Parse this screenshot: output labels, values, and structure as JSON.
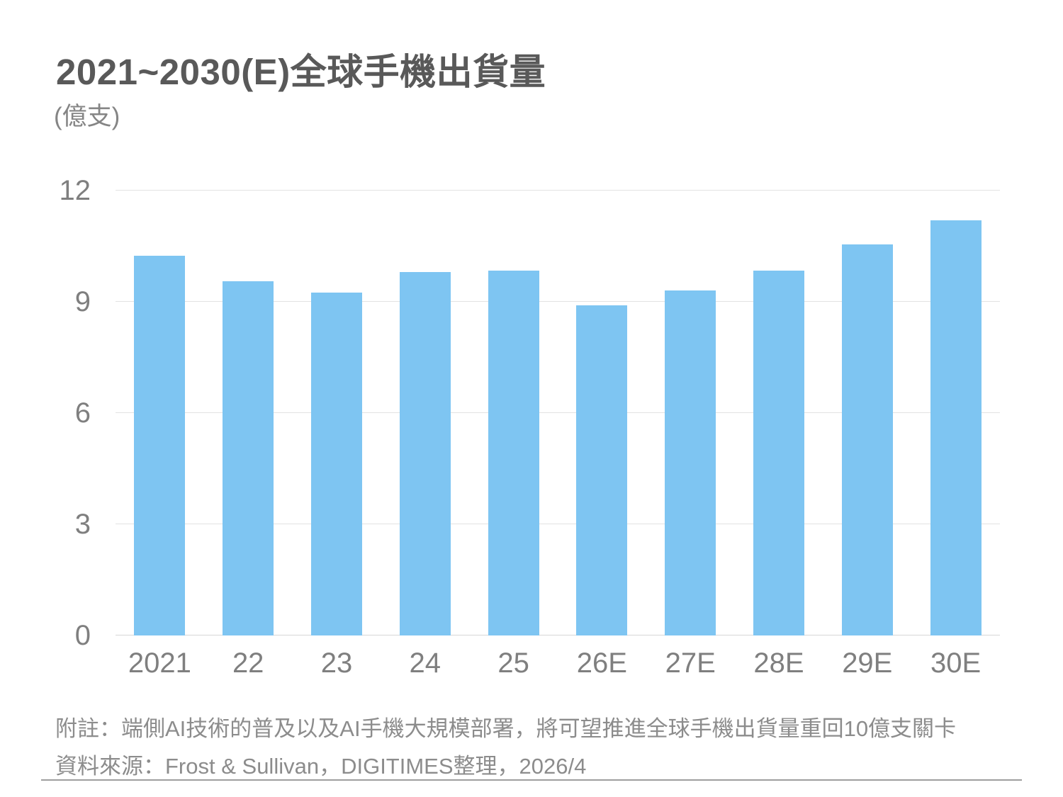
{
  "title": "2021~2030(E)全球手機出貨量",
  "unit_label": "(億支)",
  "chart_data": {
    "type": "bar",
    "title": "2021~2030(E)全球手機出貨量",
    "categories": [
      "2021",
      "22",
      "23",
      "24",
      "25",
      "26E",
      "27E",
      "28E",
      "29E",
      "30E"
    ],
    "values": [
      10.25,
      9.55,
      9.25,
      9.8,
      9.85,
      8.9,
      9.3,
      9.85,
      10.55,
      11.2
    ],
    "xlabel": "",
    "ylabel": "(億支)",
    "ylim": [
      0,
      12
    ],
    "yticks": [
      0,
      3,
      6,
      9,
      12
    ],
    "grid": true,
    "legend": "none",
    "bar_color": "#7ec5f2"
  },
  "footer": {
    "note": "附註：端側AI技術的普及以及AI手機大規模部署，將可望推進全球手機出貨量重回10億支關卡",
    "source": "資料來源：Frost & Sullivan，DIGITIMES整理，2026/4"
  },
  "colors": {
    "title_text": "#595959",
    "axis_text": "#7f7f7f",
    "unit_text": "#858585",
    "footer_text": "#8c8c8c",
    "gridline": "#e2e2e2",
    "baseline": "#d6d6d6",
    "bar": "#7ec5f2",
    "divider": "#9e9e9e",
    "background": "#ffffff"
  }
}
